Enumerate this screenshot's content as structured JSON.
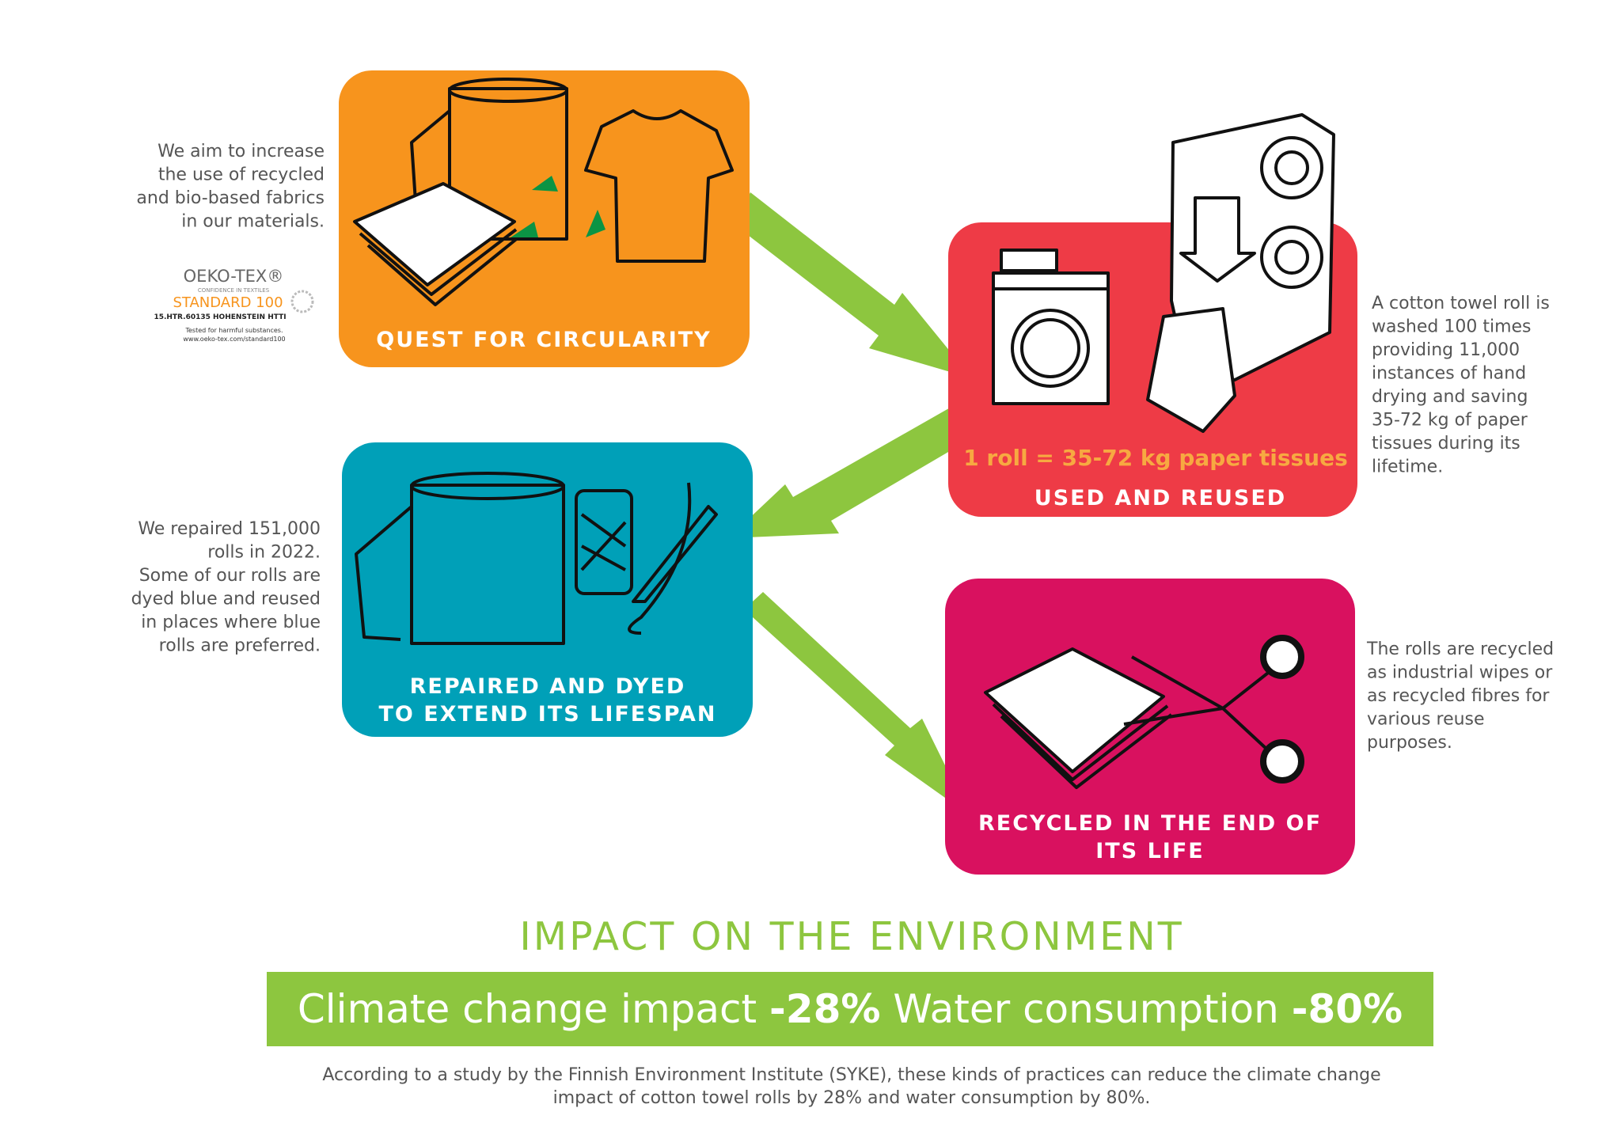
{
  "steps": [
    {
      "title": [
        "QUEST FOR CIRCULARITY"
      ],
      "note": [
        "We aim to increase",
        "the use of recycled",
        "and bio-based fabrics",
        "in our materials."
      ]
    },
    {
      "highlight": "1 roll = 35-72 kg paper tissues",
      "title": [
        "USED AND REUSED"
      ],
      "note": [
        "A cotton towel roll is",
        "washed 100 times",
        "providing 11,000",
        "instances of hand",
        "drying and saving",
        "35-72 kg of paper",
        "tissues during its",
        "lifetime."
      ]
    },
    {
      "title": [
        "REPAIRED AND DYED",
        "TO EXTEND ITS LIFESPAN"
      ],
      "note": [
        "We repaired 151,000",
        "rolls in 2022.",
        "Some of our rolls are",
        "dyed blue and reused",
        "in places where blue",
        "rolls are preferred."
      ]
    },
    {
      "title": [
        "RECYCLED IN THE END OF",
        "ITS LIFE"
      ],
      "note": [
        "The rolls are recycled",
        "as industrial wipes or",
        "as recycled fibres for",
        "various reuse",
        "purposes."
      ]
    }
  ],
  "label": {
    "brand": "OEKO-TEX®",
    "tagline": "CONFIDENCE IN TEXTILES",
    "standard": "STANDARD 100",
    "code": "15.HTR.60135 HOHENSTEIN HTTI",
    "tested": "Tested for harmful substances.",
    "url": "www.oeko-tex.com/standard100"
  },
  "impact": {
    "heading": "IMPACT ON THE ENVIRONMENT",
    "items": [
      {
        "label": "Climate change impact",
        "value": "-28%"
      },
      {
        "label": "Water consumption",
        "value": "-80%"
      }
    ],
    "footnote": [
      "According to a study by the Finnish Environment Institute (SYKE), these kinds of practices can reduce the climate change",
      "impact of cotton towel rolls by 28% and water consumption by 80%."
    ]
  }
}
